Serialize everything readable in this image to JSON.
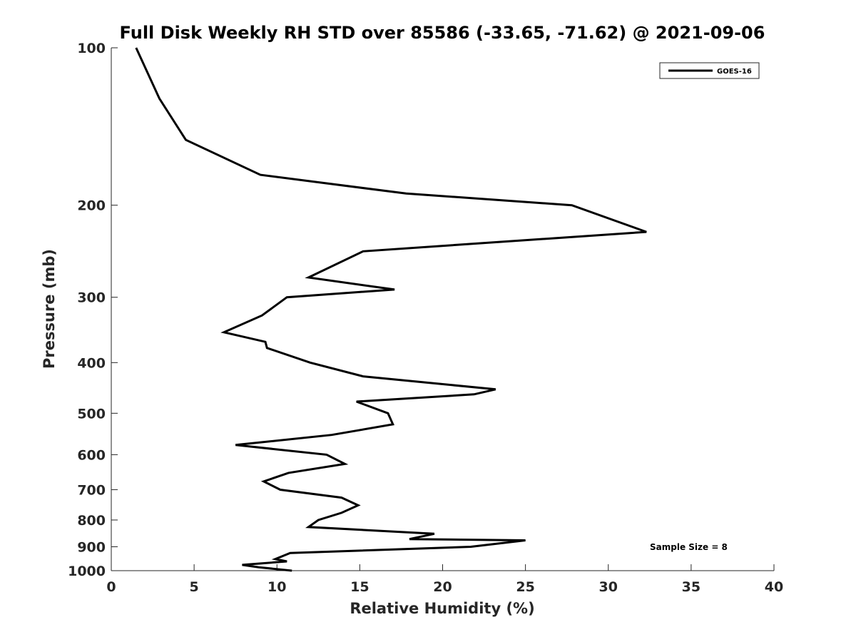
{
  "chart_data": {
    "type": "line",
    "title": "Full Disk Weekly RH STD over 85586 (-33.65, -71.62) @ 2021-09-06",
    "xlabel": "Relative Humidity (%)",
    "ylabel": "Pressure (mb)",
    "xlim": [
      0,
      40
    ],
    "ylim": [
      100,
      1000
    ],
    "y_scale": "log",
    "y_reversed": true,
    "x_ticks": [
      0,
      5,
      10,
      15,
      20,
      25,
      30,
      35,
      40
    ],
    "y_ticks": [
      100,
      200,
      300,
      400,
      500,
      600,
      700,
      800,
      900,
      1000
    ],
    "grid": false,
    "legend_position": "top-right",
    "series": [
      {
        "name": "GOES-16",
        "color": "#000000",
        "points": [
          [
            1.5,
            100
          ],
          [
            2.9,
            125
          ],
          [
            4.5,
            150
          ],
          [
            9.0,
            175
          ],
          [
            17.8,
            190
          ],
          [
            27.8,
            200
          ],
          [
            32.3,
            225
          ],
          [
            15.2,
            245
          ],
          [
            11.9,
            275
          ],
          [
            17.1,
            290
          ],
          [
            10.6,
            300
          ],
          [
            9.1,
            325
          ],
          [
            6.8,
            350
          ],
          [
            9.3,
            365
          ],
          [
            9.4,
            375
          ],
          [
            12.0,
            400
          ],
          [
            15.2,
            425
          ],
          [
            23.2,
            450
          ],
          [
            21.9,
            460
          ],
          [
            14.8,
            475
          ],
          [
            16.7,
            500
          ],
          [
            17.0,
            525
          ],
          [
            13.3,
            550
          ],
          [
            7.5,
            575
          ],
          [
            13.0,
            600
          ],
          [
            14.1,
            625
          ],
          [
            10.7,
            650
          ],
          [
            9.2,
            675
          ],
          [
            10.2,
            700
          ],
          [
            13.9,
            725
          ],
          [
            14.9,
            750
          ],
          [
            13.9,
            775
          ],
          [
            12.5,
            800
          ],
          [
            11.9,
            825
          ],
          [
            19.5,
            850
          ],
          [
            18.0,
            870
          ],
          [
            25.0,
            875
          ],
          [
            21.7,
            900
          ],
          [
            10.8,
            925
          ],
          [
            9.9,
            950
          ],
          [
            10.6,
            960
          ],
          [
            7.9,
            975
          ],
          [
            8.9,
            985
          ],
          [
            10.9,
            1000
          ]
        ]
      }
    ],
    "annotations": [
      "Sample Size = 8"
    ]
  }
}
